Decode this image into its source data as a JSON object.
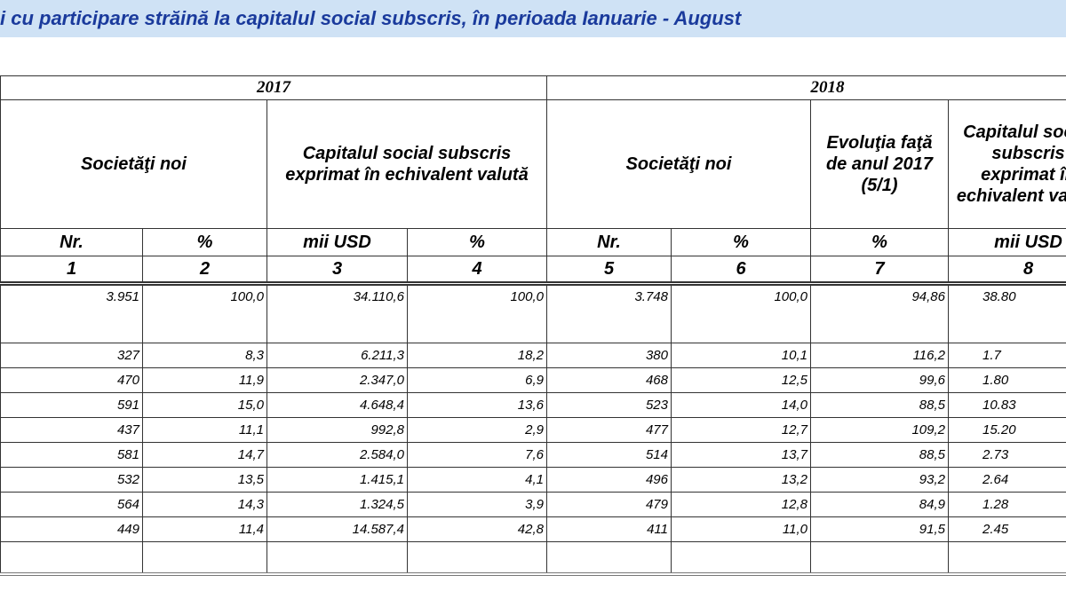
{
  "header": {
    "title": "i cu participare străină la capitalul social subscris, în perioada Ianuarie - August"
  },
  "table": {
    "years": [
      "2017",
      "2018"
    ],
    "group_headers": [
      "Societăţi  noi",
      "Capitalul social subscris exprimat în echivalent valută",
      "Societăţi  noi",
      "Evoluţia faţă de anul 2017 (5/1)",
      "Capitalul social subscris exprimat în echivalent valută"
    ],
    "units": [
      "Nr.",
      "%",
      "mii USD",
      "%",
      "Nr.",
      "%",
      "%",
      "mii USD"
    ],
    "column_numbers": [
      "1",
      "2",
      "3",
      "4",
      "5",
      "6",
      "7",
      "8"
    ],
    "rows": [
      [
        "3.951",
        "100,0",
        "34.110,6",
        "100,0",
        "3.748",
        "100,0",
        "94,86",
        "38.80"
      ],
      [
        "327",
        "8,3",
        "6.211,3",
        "18,2",
        "380",
        "10,1",
        "116,2",
        "1.7"
      ],
      [
        "470",
        "11,9",
        "2.347,0",
        "6,9",
        "468",
        "12,5",
        "99,6",
        "1.80"
      ],
      [
        "591",
        "15,0",
        "4.648,4",
        "13,6",
        "523",
        "14,0",
        "88,5",
        "10.83"
      ],
      [
        "437",
        "11,1",
        "992,8",
        "2,9",
        "477",
        "12,7",
        "109,2",
        "15.20"
      ],
      [
        "581",
        "14,7",
        "2.584,0",
        "7,6",
        "514",
        "13,7",
        "88,5",
        "2.73"
      ],
      [
        "532",
        "13,5",
        "1.415,1",
        "4,1",
        "496",
        "13,2",
        "93,2",
        "2.64"
      ],
      [
        "564",
        "14,3",
        "1.324,5",
        "3,9",
        "479",
        "12,8",
        "84,9",
        "1.28"
      ],
      [
        "449",
        "11,4",
        "14.587,4",
        "42,8",
        "411",
        "11,0",
        "91,5",
        "2.45"
      ]
    ]
  }
}
